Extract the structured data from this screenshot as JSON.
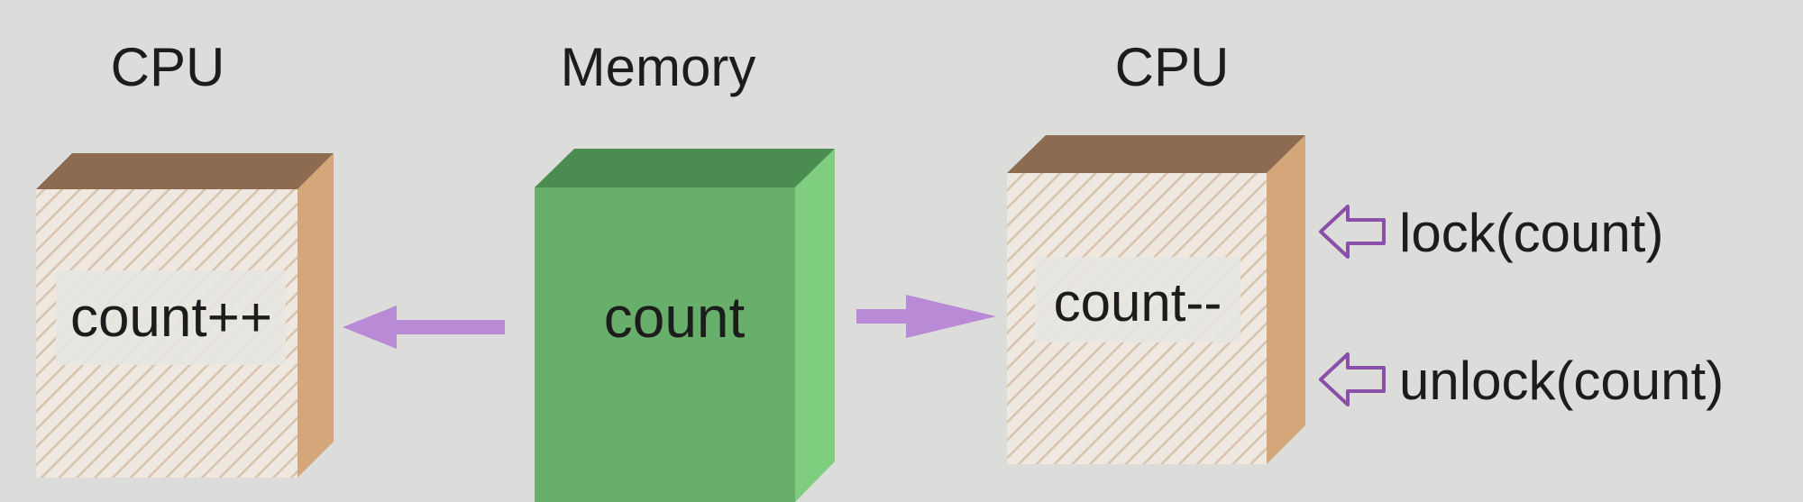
{
  "headings": {
    "left_cpu": "CPU",
    "memory": "Memory",
    "right_cpu": "CPU"
  },
  "boxes": {
    "left_cpu_text": "count++",
    "memory_text": "count",
    "right_cpu_text": "count--"
  },
  "annotations": {
    "lock": "lock(count)",
    "unlock": "unlock(count)"
  },
  "colors": {
    "background": "#dcdcda",
    "cpu_front": "#eee8e0",
    "cpu_hatch": "#d8c4ad",
    "cpu_top": "#8c6b50",
    "cpu_side": "#d4a679",
    "cpu_label_bg": "#e6e6e0",
    "memory_front": "#67af6a",
    "memory_top": "#4b8d50",
    "memory_side": "#7fce7f",
    "arrow": "#b98ad6"
  },
  "icons": {
    "lock_arrow": "hollow-left-arrow-icon",
    "unlock_arrow": "hollow-left-arrow-icon",
    "memory_to_left_cpu": "arrow-left-icon",
    "memory_to_right_cpu": "arrow-right-icon"
  }
}
